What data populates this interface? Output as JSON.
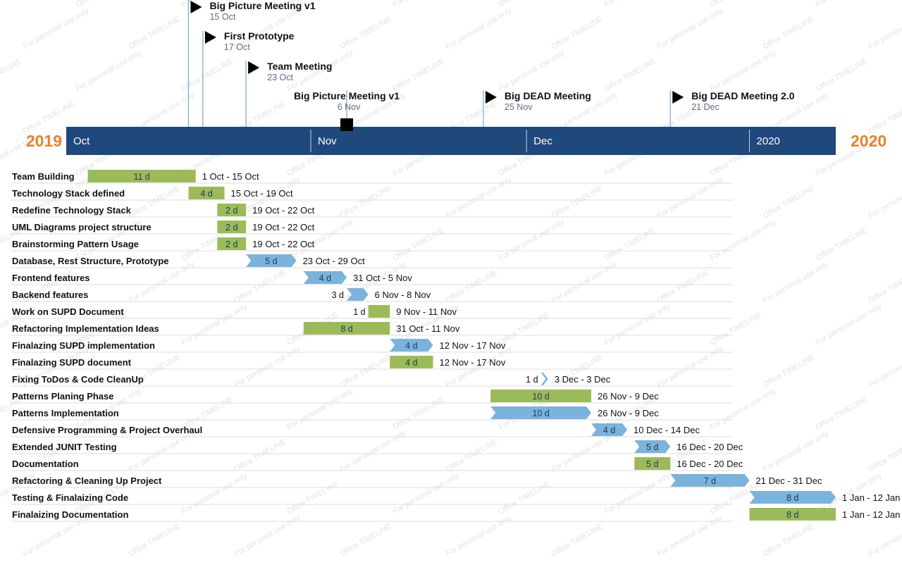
{
  "chart_data": {
    "type": "gantt",
    "years": {
      "start": "2019",
      "end": "2020"
    },
    "months": [
      {
        "label": "Oct",
        "start": "2019-10-01"
      },
      {
        "label": "Nov",
        "start": "2019-11-01"
      },
      {
        "label": "Dec",
        "start": "2019-12-01"
      },
      {
        "label": "2020",
        "start": "2020-01-01"
      }
    ],
    "axis_range": [
      "2019-09-28",
      "2020-01-13"
    ],
    "milestones": [
      {
        "title": "Big Picture Meeting v1",
        "date_label": "15 Oct",
        "date": "2019-10-15"
      },
      {
        "title": "First Prototype",
        "date_label": "17 Oct",
        "date": "2019-10-17"
      },
      {
        "title": "Team Meeting",
        "date_label": "23 Oct",
        "date": "2019-10-23"
      },
      {
        "title": "Big Picture Meeting v1",
        "date_label": "6 Nov",
        "date": "2019-11-06"
      },
      {
        "title": "Big DEAD Meeting",
        "date_label": "25 Nov",
        "date": "2019-11-25"
      },
      {
        "title": "Big DEAD Meeting 2.0",
        "date_label": "21 Dec",
        "date": "2019-12-21"
      }
    ],
    "tasks": [
      {
        "name": "Team Building",
        "duration": "11 d",
        "range": "1 Oct - 15 Oct",
        "start": "2019-10-01",
        "end": "2019-10-15",
        "shape": "bar"
      },
      {
        "name": "Technology Stack defined",
        "duration": "4 d",
        "range": "15 Oct - 19 Oct",
        "start": "2019-10-15",
        "end": "2019-10-19",
        "shape": "bar"
      },
      {
        "name": "Redefine Technology Stack",
        "duration": "2 d",
        "range": "19 Oct - 22 Oct",
        "start": "2019-10-19",
        "end": "2019-10-22",
        "shape": "bar"
      },
      {
        "name": "UML Diagrams project structure",
        "duration": "2 d",
        "range": "19 Oct - 22 Oct",
        "start": "2019-10-19",
        "end": "2019-10-22",
        "shape": "bar"
      },
      {
        "name": "Brainstorming Pattern Usage",
        "duration": "2 d",
        "range": "19 Oct - 22 Oct",
        "start": "2019-10-19",
        "end": "2019-10-22",
        "shape": "bar"
      },
      {
        "name": "Database, Rest Structure, Prototype",
        "duration": "5 d",
        "range": "23 Oct - 29 Oct",
        "start": "2019-10-23",
        "end": "2019-10-29",
        "shape": "chevron"
      },
      {
        "name": "Frontend features",
        "duration": "4 d",
        "range": "31 Oct - 5 Nov",
        "start": "2019-10-31",
        "end": "2019-11-05",
        "shape": "chevron"
      },
      {
        "name": "Backend features",
        "duration": "3 d",
        "range": "6 Nov - 8 Nov",
        "start": "2019-11-06",
        "end": "2019-11-08",
        "shape": "chevron"
      },
      {
        "name": "Work on SUPD Document",
        "duration": "1 d",
        "range": "9 Nov - 11 Nov",
        "start": "2019-11-09",
        "end": "2019-11-11",
        "shape": "bar"
      },
      {
        "name": "Refactoring Implementation Ideas",
        "duration": "8 d",
        "range": "31 Oct - 11 Nov",
        "start": "2019-10-31",
        "end": "2019-11-11",
        "shape": "bar"
      },
      {
        "name": "Finalazing SUPD implementation",
        "duration": "4 d",
        "range": "12 Nov - 17 Nov",
        "start": "2019-11-12",
        "end": "2019-11-17",
        "shape": "chevron"
      },
      {
        "name": "Finalazing SUPD document",
        "duration": "4 d",
        "range": "12 Nov - 17 Nov",
        "start": "2019-11-12",
        "end": "2019-11-17",
        "shape": "bar"
      },
      {
        "name": "Fixing ToDos & Code CleanUp",
        "duration": "1 d",
        "range": "3 Dec - 3 Dec",
        "start": "2019-12-03",
        "end": "2019-12-03",
        "shape": "chevron"
      },
      {
        "name": "Patterns Planing Phase",
        "duration": "10 d",
        "range": "26 Nov - 9 Dec",
        "start": "2019-11-26",
        "end": "2019-12-09",
        "shape": "bar"
      },
      {
        "name": "Patterns Implementation",
        "duration": "10 d",
        "range": "26 Nov - 9 Dec",
        "start": "2019-11-26",
        "end": "2019-12-09",
        "shape": "chevron"
      },
      {
        "name": "Defensive Programming & Project Overhaul",
        "duration": "4 d",
        "range": "10 Dec - 14 Dec",
        "start": "2019-12-10",
        "end": "2019-12-14",
        "shape": "chevron"
      },
      {
        "name": "Extended JUNIT Testing",
        "duration": "5 d",
        "range": "16 Dec - 20 Dec",
        "start": "2019-12-16",
        "end": "2019-12-20",
        "shape": "chevron"
      },
      {
        "name": "Documentation",
        "duration": "5 d",
        "range": "16 Dec - 20 Dec",
        "start": "2019-12-16",
        "end": "2019-12-20",
        "shape": "bar"
      },
      {
        "name": "Refactoring & Cleaning Up Project",
        "duration": "7 d",
        "range": "21 Dec - 31 Dec",
        "start": "2019-12-21",
        "end": "2019-12-31",
        "shape": "chevron"
      },
      {
        "name": "Testing & Finalaizing Code",
        "duration": "8 d",
        "range": "1 Jan - 12 Jan",
        "start": "2020-01-01",
        "end": "2020-01-12",
        "shape": "chevron"
      },
      {
        "name": "Finalaizing Documentation",
        "duration": "8 d",
        "range": "1 Jan - 12 Jan",
        "start": "2020-01-01",
        "end": "2020-01-12",
        "shape": "bar"
      }
    ],
    "marker": {
      "date": "2019-11-06"
    },
    "colors": {
      "timeband": "#1f487c",
      "bar_green": "#9bbb59",
      "chevron_blue": "#7ab3dc",
      "year": "#e8822a",
      "milestone_line": "#7aa7c7",
      "row_line": "#dddddd"
    },
    "watermark": [
      "For personal use only",
      "Office TIMELINE"
    ]
  }
}
